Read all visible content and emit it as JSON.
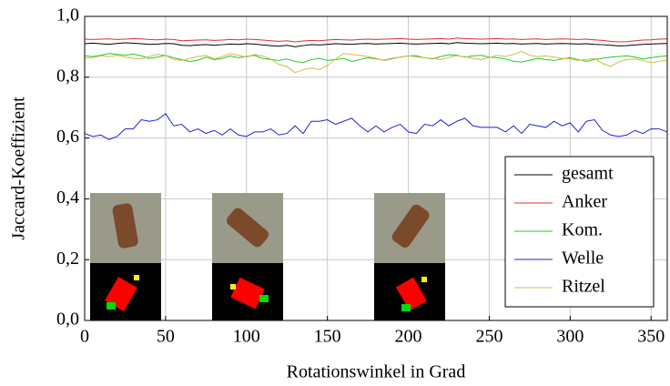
{
  "chart_data": {
    "type": "line",
    "xlabel": "Rotationswinkel in Grad",
    "ylabel": "Jaccard-Koeffizient",
    "x": [
      0,
      5,
      10,
      15,
      20,
      25,
      30,
      35,
      40,
      45,
      50,
      55,
      60,
      65,
      70,
      75,
      80,
      85,
      90,
      95,
      100,
      105,
      110,
      115,
      120,
      125,
      130,
      135,
      140,
      145,
      150,
      155,
      160,
      165,
      170,
      175,
      180,
      185,
      190,
      195,
      200,
      205,
      210,
      215,
      220,
      225,
      230,
      235,
      240,
      245,
      250,
      255,
      260,
      265,
      270,
      275,
      280,
      285,
      290,
      295,
      300,
      305,
      310,
      315,
      320,
      325,
      330,
      335,
      340,
      345,
      350,
      355,
      360
    ],
    "series": [
      {
        "name": "gesamt",
        "color": "#000000",
        "values": [
          0.91,
          0.912,
          0.91,
          0.908,
          0.911,
          0.913,
          0.912,
          0.91,
          0.908,
          0.909,
          0.911,
          0.91,
          0.905,
          0.904,
          0.906,
          0.907,
          0.905,
          0.907,
          0.909,
          0.908,
          0.91,
          0.909,
          0.906,
          0.904,
          0.902,
          0.905,
          0.9,
          0.904,
          0.907,
          0.906,
          0.908,
          0.91,
          0.909,
          0.908,
          0.91,
          0.911,
          0.909,
          0.91,
          0.911,
          0.912,
          0.91,
          0.909,
          0.91,
          0.911,
          0.912,
          0.91,
          0.914,
          0.912,
          0.911,
          0.91,
          0.911,
          0.912,
          0.91,
          0.911,
          0.909,
          0.91,
          0.911,
          0.909,
          0.91,
          0.911,
          0.91,
          0.909,
          0.91,
          0.908,
          0.907,
          0.905,
          0.903,
          0.904,
          0.906,
          0.908,
          0.909,
          0.91,
          0.911
        ]
      },
      {
        "name": "Anker",
        "color": "#e03030",
        "values": [
          0.925,
          0.924,
          0.925,
          0.926,
          0.924,
          0.925,
          0.927,
          0.926,
          0.924,
          0.923,
          0.925,
          0.924,
          0.92,
          0.921,
          0.922,
          0.923,
          0.921,
          0.922,
          0.924,
          0.923,
          0.925,
          0.924,
          0.922,
          0.92,
          0.918,
          0.92,
          0.916,
          0.919,
          0.921,
          0.92,
          0.922,
          0.924,
          0.923,
          0.922,
          0.924,
          0.925,
          0.924,
          0.925,
          0.926,
          0.927,
          0.925,
          0.924,
          0.925,
          0.926,
          0.927,
          0.925,
          0.929,
          0.927,
          0.926,
          0.925,
          0.926,
          0.927,
          0.925,
          0.926,
          0.924,
          0.925,
          0.926,
          0.924,
          0.925,
          0.926,
          0.925,
          0.924,
          0.925,
          0.923,
          0.921,
          0.918,
          0.916,
          0.917,
          0.92,
          0.922,
          0.923,
          0.925,
          0.926
        ]
      },
      {
        "name": "Kom.",
        "color": "#22cc22",
        "values": [
          0.87,
          0.868,
          0.872,
          0.878,
          0.875,
          0.872,
          0.876,
          0.87,
          0.862,
          0.866,
          0.872,
          0.864,
          0.858,
          0.852,
          0.856,
          0.866,
          0.858,
          0.862,
          0.87,
          0.864,
          0.868,
          0.872,
          0.862,
          0.858,
          0.855,
          0.86,
          0.852,
          0.848,
          0.858,
          0.862,
          0.855,
          0.858,
          0.862,
          0.852,
          0.858,
          0.864,
          0.86,
          0.856,
          0.862,
          0.866,
          0.87,
          0.868,
          0.864,
          0.86,
          0.868,
          0.874,
          0.872,
          0.866,
          0.87,
          0.872,
          0.866,
          0.864,
          0.86,
          0.852,
          0.85,
          0.856,
          0.862,
          0.858,
          0.855,
          0.86,
          0.864,
          0.858,
          0.852,
          0.858,
          0.862,
          0.866,
          0.868,
          0.87,
          0.866,
          0.86,
          0.864,
          0.868,
          0.87
        ]
      },
      {
        "name": "Welle",
        "color": "#2020dd",
        "values": [
          0.615,
          0.605,
          0.61,
          0.595,
          0.605,
          0.63,
          0.63,
          0.66,
          0.655,
          0.66,
          0.68,
          0.64,
          0.645,
          0.62,
          0.63,
          0.615,
          0.625,
          0.61,
          0.63,
          0.61,
          0.605,
          0.62,
          0.62,
          0.63,
          0.61,
          0.615,
          0.64,
          0.615,
          0.655,
          0.655,
          0.66,
          0.645,
          0.655,
          0.665,
          0.64,
          0.62,
          0.64,
          0.62,
          0.635,
          0.645,
          0.62,
          0.615,
          0.645,
          0.64,
          0.66,
          0.64,
          0.655,
          0.665,
          0.64,
          0.635,
          0.635,
          0.635,
          0.62,
          0.64,
          0.615,
          0.645,
          0.64,
          0.635,
          0.655,
          0.64,
          0.65,
          0.62,
          0.655,
          0.66,
          0.625,
          0.61,
          0.605,
          0.61,
          0.625,
          0.615,
          0.63,
          0.63,
          0.62
        ]
      },
      {
        "name": "Ritzel",
        "color": "#d8b84a",
        "values": [
          0.862,
          0.865,
          0.87,
          0.868,
          0.872,
          0.866,
          0.862,
          0.86,
          0.868,
          0.875,
          0.872,
          0.858,
          0.855,
          0.862,
          0.868,
          0.872,
          0.86,
          0.868,
          0.878,
          0.872,
          0.866,
          0.875,
          0.87,
          0.86,
          0.842,
          0.835,
          0.815,
          0.825,
          0.83,
          0.825,
          0.838,
          0.86,
          0.878,
          0.875,
          0.872,
          0.868,
          0.862,
          0.855,
          0.86,
          0.866,
          0.87,
          0.872,
          0.864,
          0.862,
          0.858,
          0.865,
          0.87,
          0.868,
          0.862,
          0.858,
          0.865,
          0.872,
          0.868,
          0.875,
          0.885,
          0.872,
          0.868,
          0.87,
          0.866,
          0.862,
          0.86,
          0.855,
          0.858,
          0.862,
          0.845,
          0.835,
          0.85,
          0.858,
          0.86,
          0.855,
          0.848,
          0.852,
          0.856
        ]
      }
    ],
    "xlim": [
      0,
      360
    ],
    "xticks": [
      0,
      50,
      100,
      150,
      200,
      250,
      300,
      350
    ],
    "ylim": [
      0,
      1
    ],
    "yticks": [
      {
        "value": 0,
        "label": "0,0"
      },
      {
        "value": 0.2,
        "label": "0,2"
      },
      {
        "value": 0.4,
        "label": "0,4"
      },
      {
        "value": 0.6,
        "label": "0,6"
      },
      {
        "value": 0.8,
        "label": "0,8"
      },
      {
        "value": 1,
        "label": "1,0"
      }
    ],
    "grid": true,
    "legend": "east"
  }
}
